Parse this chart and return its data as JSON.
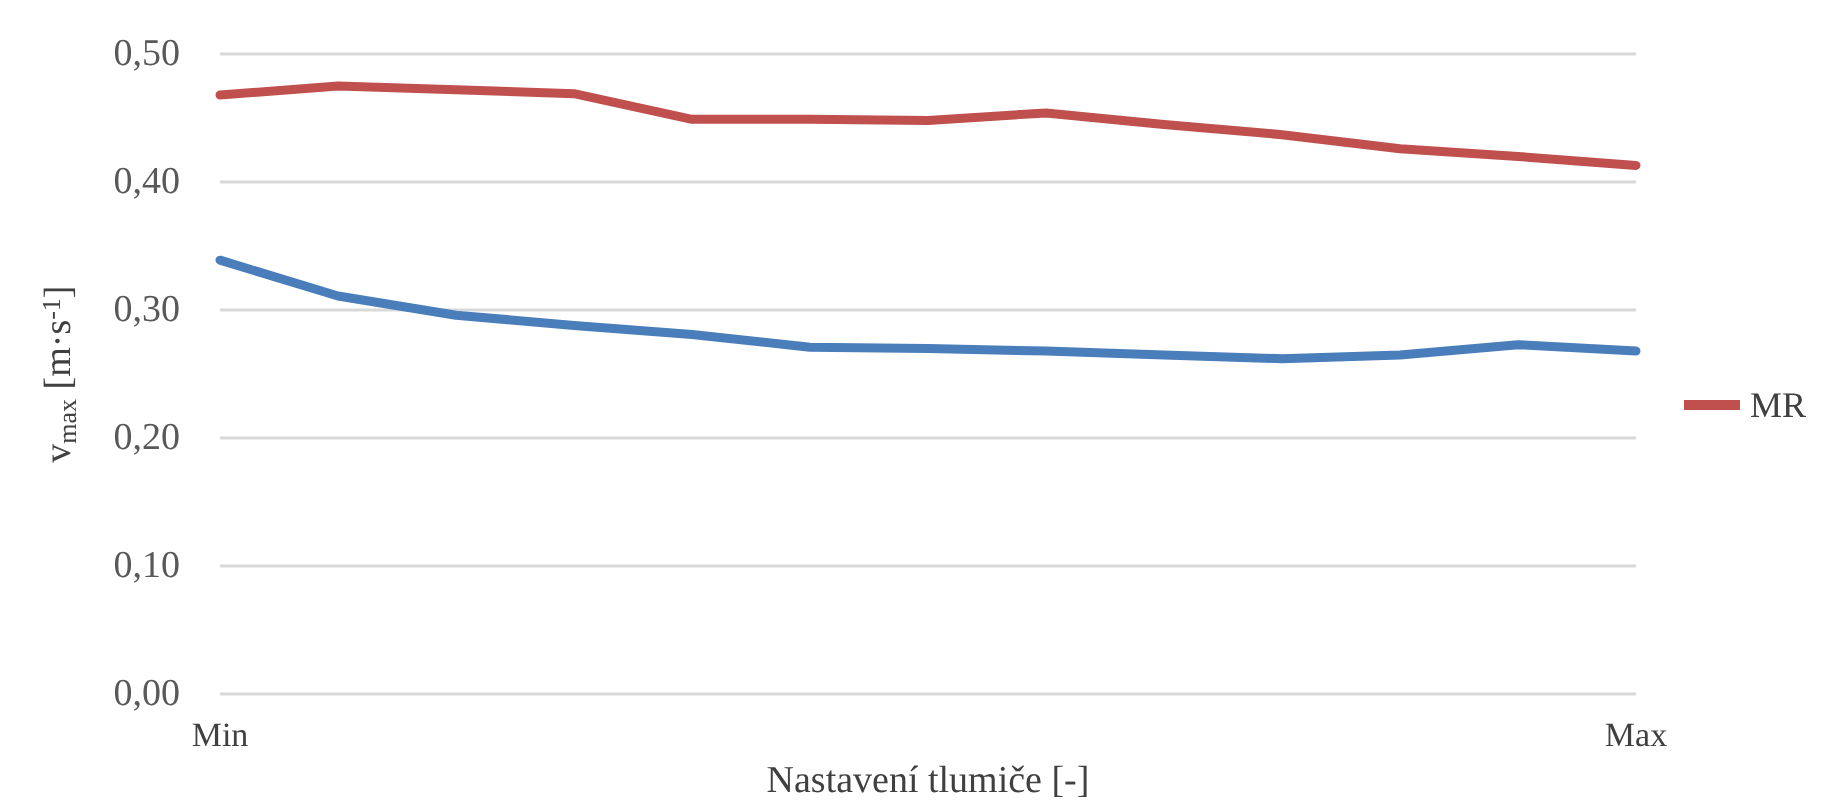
{
  "chart_data": {
    "type": "line",
    "xlabel": "Nastavení tlumiče [-]",
    "ylabel": "v$_{max}$ [m·s$^{-1}$]",
    "categories": [
      "Min",
      null,
      null,
      null,
      null,
      null,
      null,
      null,
      null,
      null,
      null,
      null,
      "Max"
    ],
    "series": [
      {
        "color": "#4a7ebb",
        "values": [
          0.339,
          0.311,
          0.296,
          0.288,
          0.281,
          0.271,
          0.27,
          0.268,
          0.265,
          0.262,
          0.265,
          0.273,
          0.268
        ]
      },
      {
        "name": "MR",
        "color": "#c0504d",
        "values": [
          0.468,
          0.475,
          0.472,
          0.469,
          0.449,
          0.449,
          0.448,
          0.454,
          0.445,
          0.437,
          0.426,
          0.42,
          0.413
        ]
      }
    ],
    "ylim": [
      0,
      0.5
    ],
    "yticks": [
      {
        "value": 0,
        "label": "0,00"
      },
      {
        "value": 0.1,
        "label": "0,10"
      },
      {
        "value": 0.2,
        "label": "0,20"
      },
      {
        "value": 0.3,
        "label": "0,30"
      },
      {
        "value": 0.4,
        "label": "0,40"
      },
      {
        "value": 0.5,
        "label": "0,50"
      }
    ],
    "grid": "y",
    "legend": "right",
    "marker": "none",
    "line_style": "solid"
  }
}
